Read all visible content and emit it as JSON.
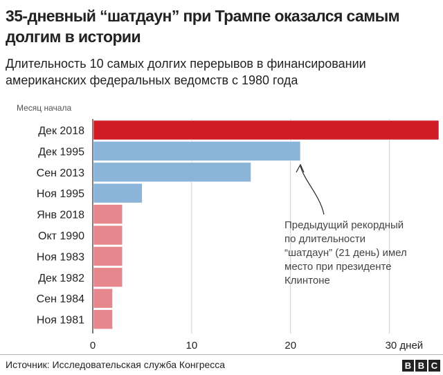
{
  "header": {
    "title": "35-дневный “шатдаун” при Трампе оказался самым долгим в истории",
    "subtitle": "Длительность 10 самых долгих перерывов в финансировании американских федеральных ведомств с 1980 года"
  },
  "chart_data": {
    "type": "bar",
    "orientation": "horizontal",
    "axis_caption": "Месяц начала",
    "categories": [
      "Дек 2018",
      "Дек 1995",
      "Сен 2013",
      "Ноя 1995",
      "Янв 2018",
      "Окт 1990",
      "Ноя 1983",
      "Дек 1982",
      "Сен 1984",
      "Ноя 1981"
    ],
    "values": [
      35,
      21,
      16,
      5,
      3,
      3,
      3,
      3,
      2,
      2
    ],
    "bar_colors": [
      "#d01c24",
      "#8bb5d8",
      "#8bb5d8",
      "#8bb5d8",
      "#e5878c",
      "#e5878c",
      "#e5878c",
      "#e5878c",
      "#e5878c",
      "#e5878c"
    ],
    "xlim": [
      0,
      35
    ],
    "xticks": [
      0,
      10,
      20,
      30
    ],
    "xtick_labels": [
      "0",
      "10",
      "20",
      "30 дней"
    ],
    "grid": true,
    "annotation": {
      "lines": [
        "Предыдущий рекордный",
        "по длительности",
        "“шатдаун” (21 день) имел",
        "место при президенте",
        "Клинтоне"
      ],
      "points_to": "Дек 1995"
    }
  },
  "footer": {
    "source": "Источник: Исследовательская служба Конгресса",
    "logo_letters": [
      "B",
      "B",
      "C"
    ]
  }
}
